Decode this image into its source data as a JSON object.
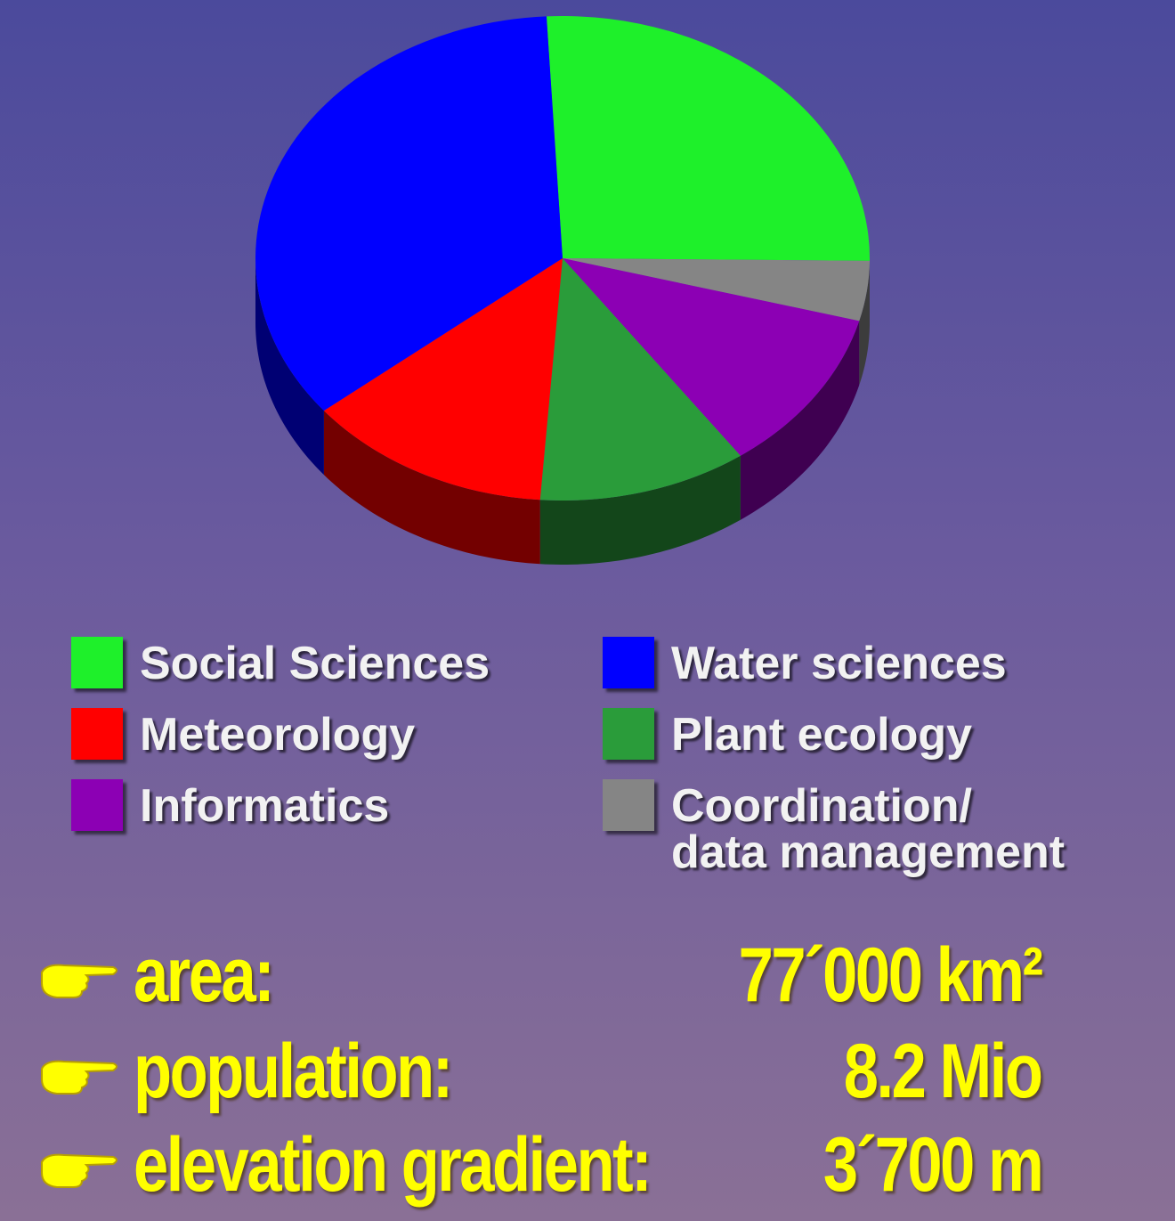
{
  "chart_data": {
    "type": "pie",
    "categories": [
      "Social Sciences",
      "Coordination/\ndata management",
      "Informatics",
      "Plant ecology",
      "Meteorology",
      "Water sciences"
    ],
    "values": [
      26,
      4,
      11,
      11,
      13,
      35
    ],
    "colors": [
      "#1ef02a",
      "#858585",
      "#8c00b4",
      "#2a9c3a",
      "#ff0000",
      "#0000ff"
    ]
  },
  "facts": [
    {
      "label": "area:",
      "value": "77´000 km²"
    },
    {
      "label": "population:",
      "value": "8.2 Mio"
    },
    {
      "label": "elevation gradient:",
      "value": "3´700 m"
    }
  ]
}
